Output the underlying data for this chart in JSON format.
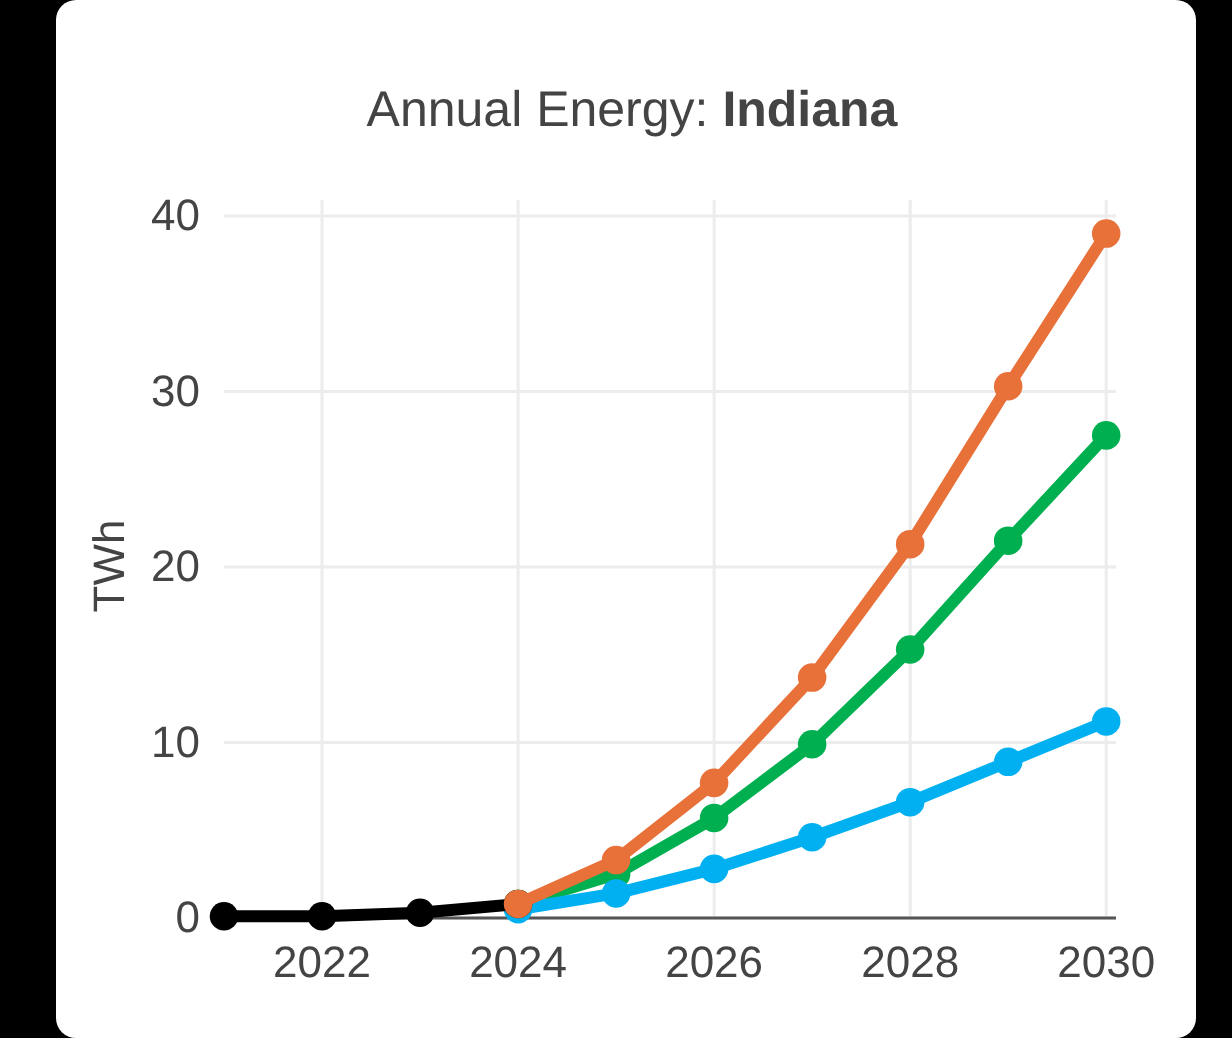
{
  "chart_data": {
    "type": "line",
    "title": "Annual Energy: Indiana",
    "ylabel": "TWh",
    "xlim": [
      2021,
      2030.1
    ],
    "xticks": [
      2022,
      2024,
      2026,
      2028,
      2030
    ],
    "ylim": [
      0,
      40
    ],
    "yticks": [
      0,
      10,
      20,
      30,
      40
    ],
    "grid": true,
    "marker": "circle",
    "line_style": "solid",
    "series": [
      {
        "color": "#00b050",
        "x": [
          2024,
          2025,
          2026,
          2027,
          2028,
          2029,
          2030
        ],
        "values": [
          0.8,
          2.5,
          5.7,
          9.9,
          15.3,
          21.5,
          27.5
        ]
      },
      {
        "color": "#00b0f0",
        "x": [
          2024,
          2025,
          2026,
          2027,
          2028,
          2029,
          2030
        ],
        "values": [
          0.5,
          1.4,
          2.8,
          4.6,
          6.6,
          8.9,
          11.2
        ]
      },
      {
        "color": "#000000",
        "x": [
          2021,
          2022,
          2023,
          2024
        ],
        "values": [
          0.1,
          0.1,
          0.3,
          0.8
        ]
      },
      {
        "color": "#e8713a",
        "x": [
          2024,
          2025,
          2026,
          2027,
          2028,
          2029,
          2030
        ],
        "values": [
          0.8,
          3.3,
          7.7,
          13.7,
          21.3,
          30.3,
          39.0
        ]
      }
    ]
  }
}
